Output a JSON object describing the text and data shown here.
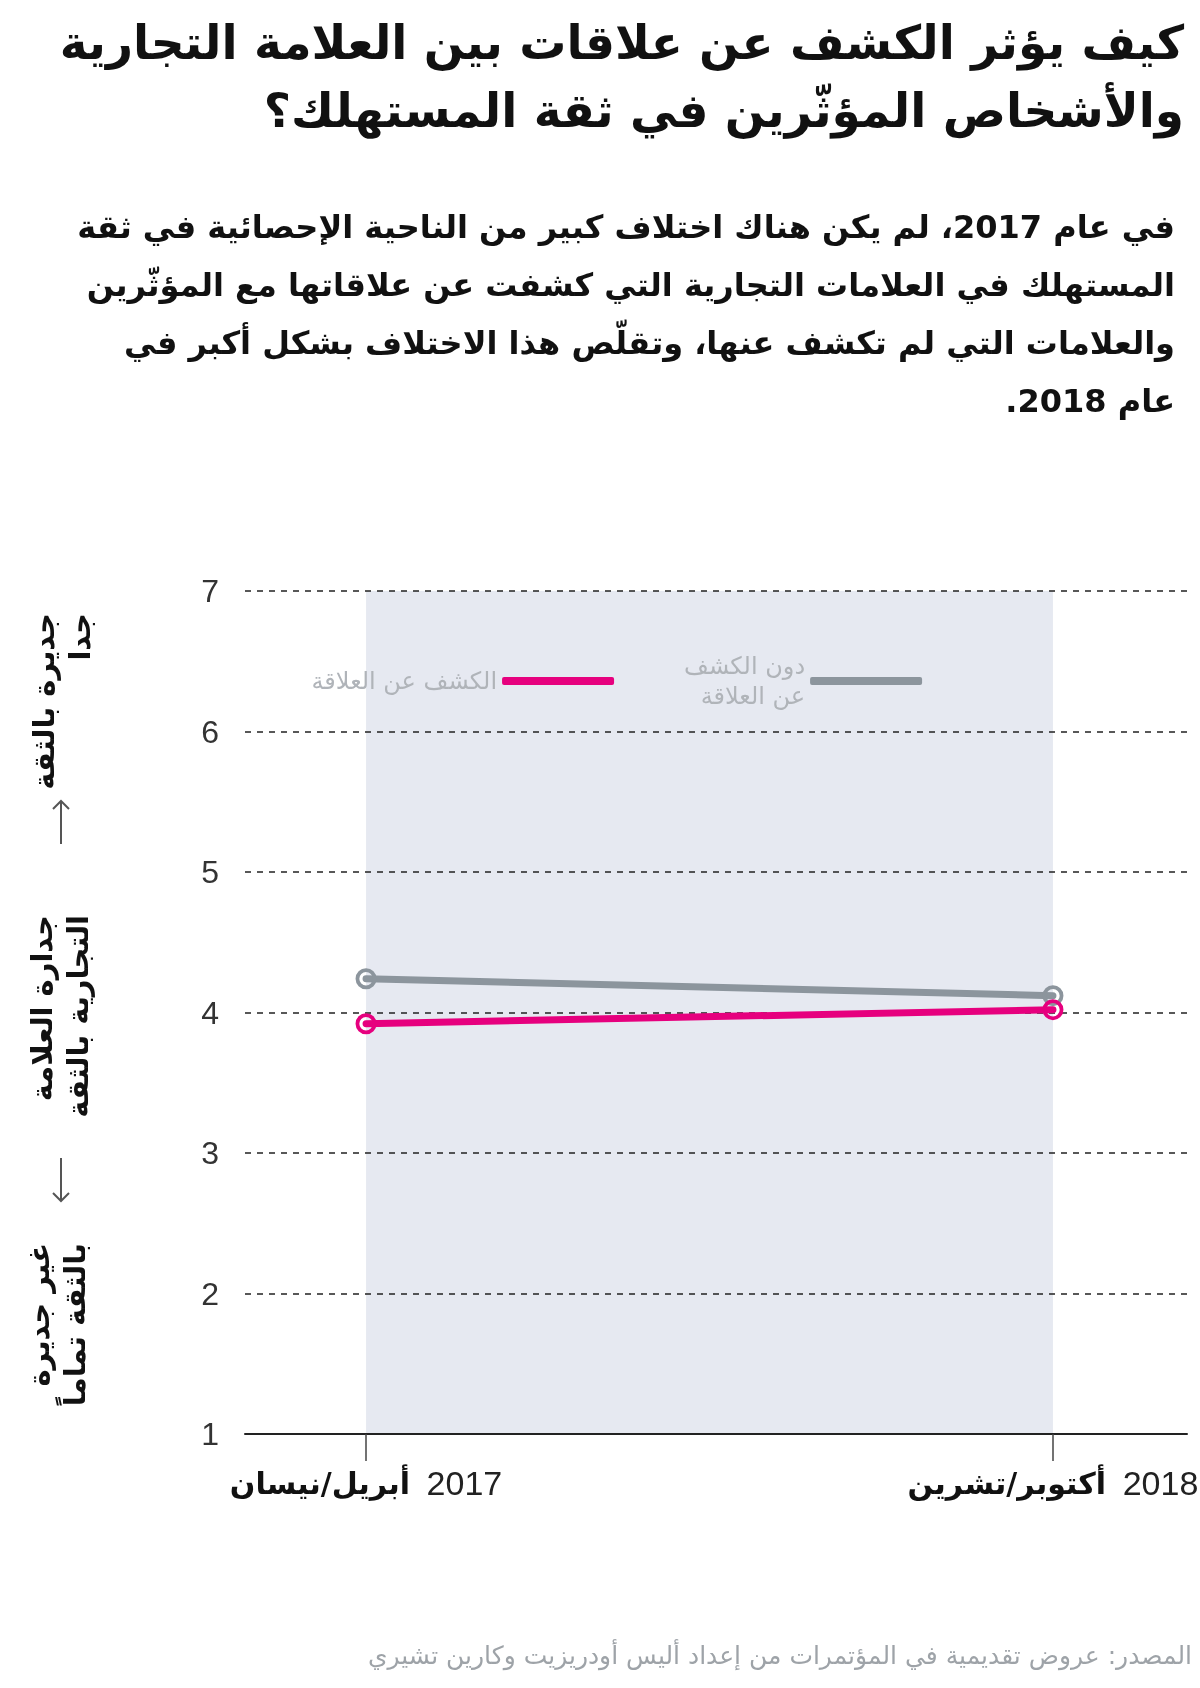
{
  "chart_data": {
    "type": "line",
    "title": "كيف يؤثر الكشف عن علاقات بين العلامة التجارية والأشخاص المؤثّرين في ثقة المستهلك؟",
    "subtitle": "في عام 2017، لم يكن هناك اختلاف كبير من الناحية الإحصائية في ثقة المستهلك في العلامات التجارية التي كشفت عن علاقاتها مع المؤثّرين والعلامات التي لم تكشف عنها، وتقلّص هذا الاختلاف بشكل أكبر في عام 2018.",
    "ylabel": "جدارة العلامة التجارية بالثقة",
    "annotations": [
      "جديرة بالثقة جدا",
      "غير جديرة بالثقة تماماً",
      "المصدر: عروض تقديمية في المؤتمرات من إعداد أليس أودريزيت وكارين تشيري"
    ],
    "categories": [
      "أبريل/نيسان 2017",
      "أكتوبر/تشرين 2018"
    ],
    "series": [
      {
        "name": "دون الكشف عن العلاقة",
        "color": "#8c959d",
        "values": [
          4.24,
          4.12
        ]
      },
      {
        "name": "الكشف عن العلاقة",
        "color": "#e6007e",
        "values": [
          3.92,
          4.02
        ]
      }
    ],
    "ylim": [
      1,
      7
    ],
    "yticks": [
      1,
      2,
      3,
      4,
      5,
      6,
      7
    ],
    "grid": "y",
    "legend": "top",
    "marker": "circle",
    "line_style": "solid",
    "bands": [
      {
        "axis": "x",
        "from": "أبريل/نيسان 2017",
        "to": "أكتوبر/تشرين 2018",
        "color": "#e6e9f1"
      }
    ]
  }
}
